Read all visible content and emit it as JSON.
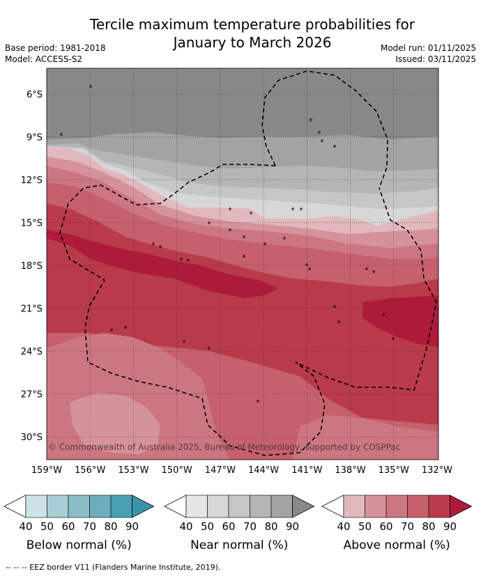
{
  "title_line1": "Tercile maximum temperature probabilities for",
  "title_line2": "January to March 2026",
  "base_period": "Base period: 1981-2018",
  "model": "Model: ACCESS-S2",
  "model_run": "Model run: 01/11/2025",
  "issued": "Issued: 03/11/2025",
  "copyright": "© Commonwealth of Australia 2025, Bureau of Meteorology, supported by COSPPac",
  "lat_labels": [
    "6°S",
    "9°S",
    "12°S",
    "15°S",
    "18°S",
    "21°S",
    "24°S",
    "27°S",
    "30°S"
  ],
  "lon_labels": [
    "159°W",
    "156°W",
    "153°W",
    "150°W",
    "147°W",
    "144°W",
    "141°W",
    "138°W",
    "135°W",
    "132°W"
  ],
  "colorbars": [
    {
      "title": "Below normal (%)",
      "ticks": [
        "40",
        "50",
        "60",
        "70",
        "80",
        "90"
      ],
      "colors": [
        "#cde3e9",
        "#a9cdd5",
        "#8bbcc7",
        "#6caebb",
        "#47a1b2",
        "#3b95a6"
      ]
    },
    {
      "title": "Near normal (%)",
      "ticks": [
        "40",
        "50",
        "60",
        "70",
        "80",
        "90"
      ],
      "colors": [
        "#e6e6e6",
        "#d7d7d7",
        "#c6c6c6",
        "#b5b5b5",
        "#a3a3a3",
        "#888888"
      ]
    },
    {
      "title": "Above normal (%)",
      "ticks": [
        "40",
        "50",
        "60",
        "70",
        "80",
        "90"
      ],
      "colors": [
        "#e2b8bf",
        "#d6929b",
        "#cc7682",
        "#c5606c",
        "#b93a4a",
        "#ae1b3a"
      ]
    }
  ],
  "footer": "-- -- -- EEZ border V11 (Flanders Marine Institute, 2019)."
}
